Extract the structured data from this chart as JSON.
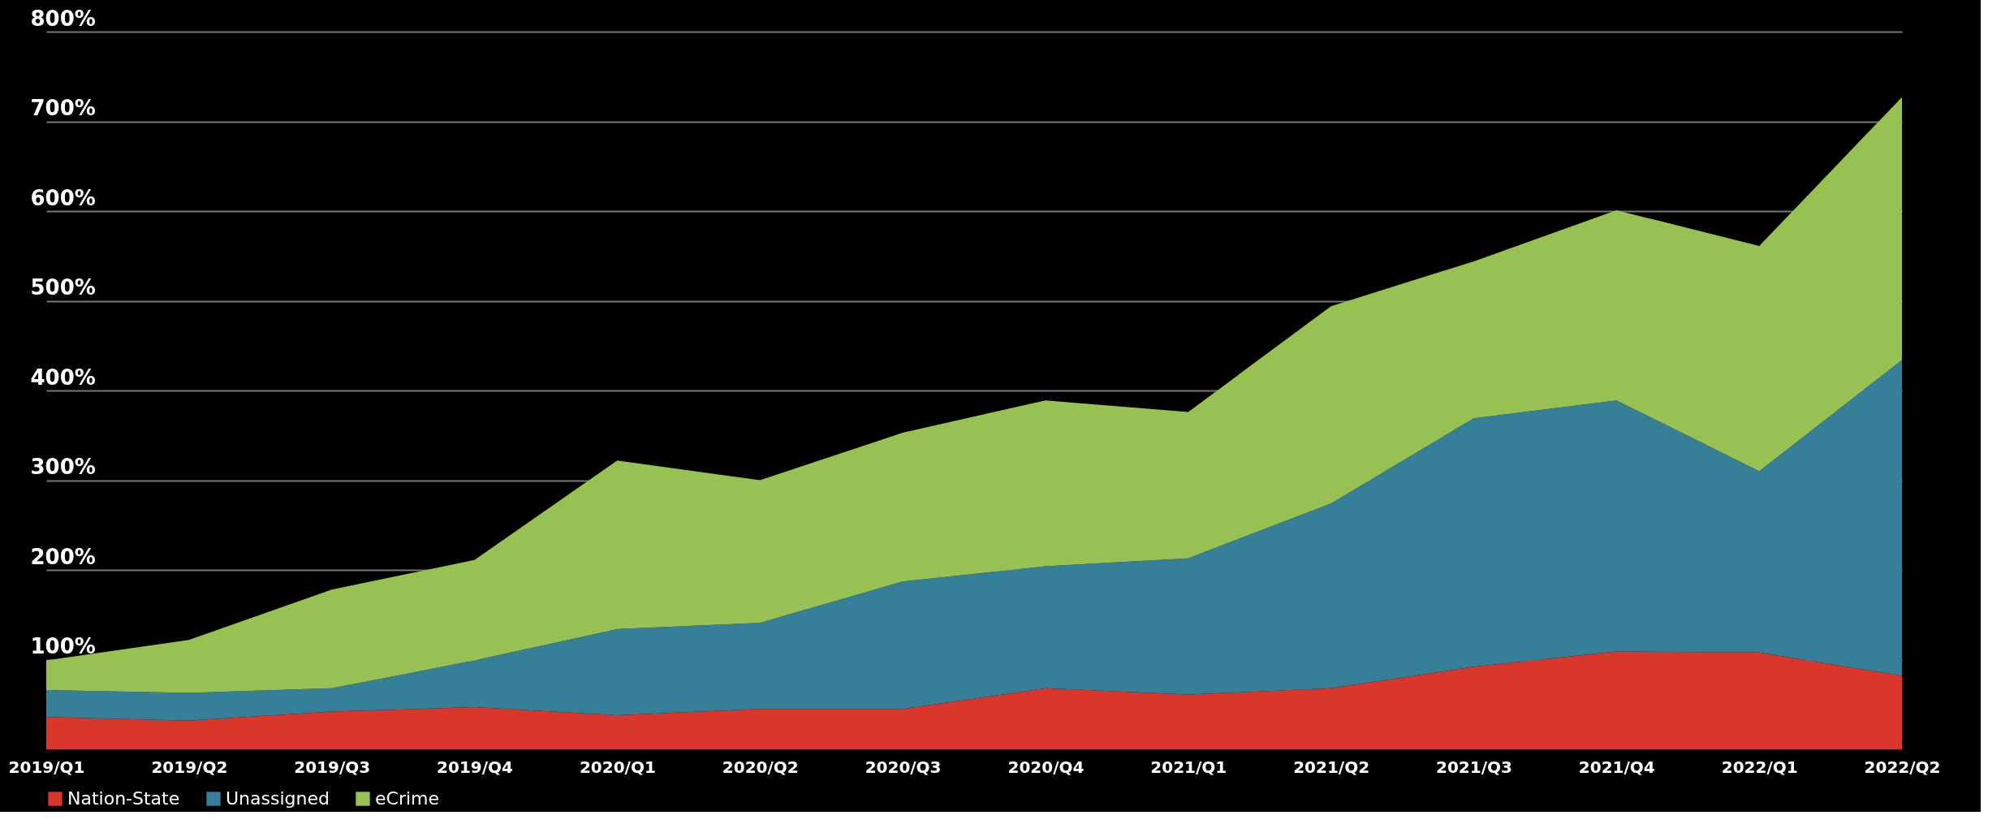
{
  "chart_data": {
    "type": "area",
    "stacked": true,
    "categories": [
      "2019/Q1",
      "2019/Q2",
      "2019/Q3",
      "2019/Q4",
      "2020/Q1",
      "2020/Q2",
      "2020/Q3",
      "2020/Q4",
      "2021/Q1",
      "2021/Q2",
      "2021/Q3",
      "2021/Q4",
      "2022/Q1",
      "2022/Q2"
    ],
    "series": [
      {
        "name": "Nation-State",
        "color": "#d9372b",
        "values": [
          36,
          32,
          42,
          47,
          38,
          45,
          45,
          68,
          61,
          68,
          92,
          109,
          108,
          82
        ]
      },
      {
        "name": "Unassigned",
        "color": "#357f98",
        "values": [
          30,
          31,
          26,
          52,
          96,
          96,
          142,
          136,
          152,
          206,
          277,
          280,
          202,
          352
        ]
      },
      {
        "name": "eCrime",
        "color": "#97c253",
        "values": [
          33,
          59,
          110,
          112,
          188,
          159,
          166,
          185,
          163,
          220,
          175,
          212,
          251,
          293
        ]
      }
    ],
    "ylim": [
      0,
      800
    ],
    "yticks": [
      {
        "value": 100,
        "label": "100%"
      },
      {
        "value": 200,
        "label": "200%"
      },
      {
        "value": 300,
        "label": "300%"
      },
      {
        "value": 400,
        "label": "400%"
      },
      {
        "value": 500,
        "label": "500%"
      },
      {
        "value": 600,
        "label": "600%"
      },
      {
        "value": 700,
        "label": "700%"
      },
      {
        "value": 800,
        "label": "800%"
      }
    ],
    "grid": "y",
    "legend": "bottom"
  }
}
